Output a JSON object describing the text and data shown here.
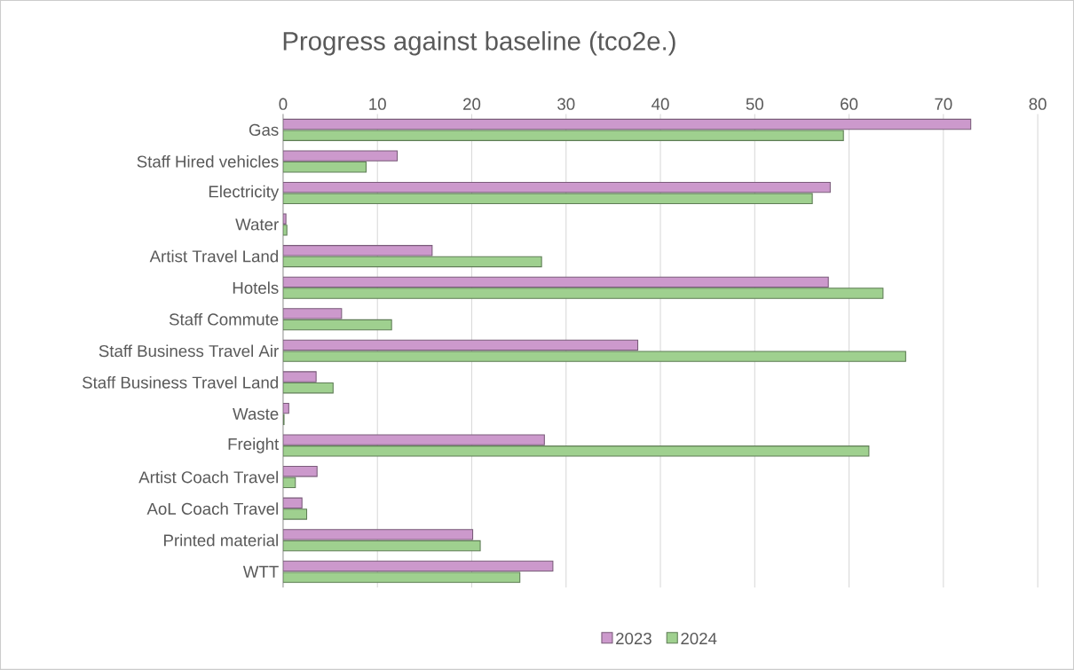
{
  "chart_data": {
    "type": "bar",
    "orientation": "horizontal",
    "title": "Progress against baseline (tco2e.)",
    "categories": [
      "Gas",
      "Staff Hired vehicles",
      "Electricity",
      "Water",
      "Artist Travel Land",
      "Hotels",
      "Staff Commute",
      "Staff Business Travel Air",
      "Staff Business Travel Land",
      "Waste",
      "Freight",
      "Artist Coach Travel",
      "AoL Coach Travel",
      "Printed material",
      "WTT"
    ],
    "series": [
      {
        "name": "2023",
        "color": "#cc99cc",
        "values": [
          72.9,
          12.1,
          58.0,
          0.3,
          15.8,
          57.8,
          6.2,
          37.6,
          3.5,
          0.6,
          27.7,
          3.6,
          2.0,
          20.1,
          28.6
        ]
      },
      {
        "name": "2024",
        "color": "#9fd08f",
        "values": [
          59.4,
          8.8,
          56.1,
          0.4,
          27.4,
          63.6,
          11.5,
          66.0,
          5.3,
          0.1,
          62.1,
          1.3,
          2.5,
          20.9,
          25.1
        ]
      }
    ],
    "xlim": [
      0,
      80
    ],
    "xticks": [
      0,
      10,
      20,
      30,
      40,
      50,
      60,
      70,
      80
    ],
    "grid": "x",
    "legend": "bottom"
  }
}
